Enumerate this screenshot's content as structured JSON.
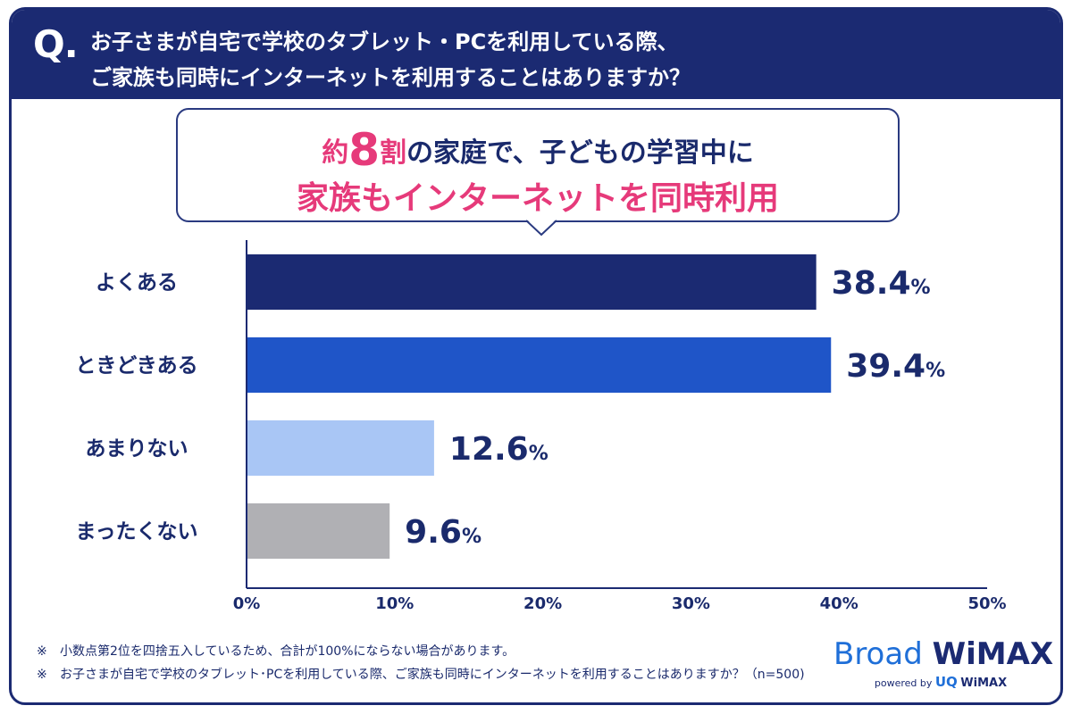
{
  "question": {
    "mark": "Q.",
    "line1": "お子さまが自宅で学校のタブレット・PCを利用している際、",
    "line2": "ご家族も同時にインターネットを利用することはありますか？"
  },
  "callout": {
    "prefix": "約",
    "number": "8",
    "suffix": "割",
    "rest": "の家庭で、子どもの学習中に",
    "line2": "家族もインターネットを同時利用"
  },
  "chart_data": {
    "type": "bar",
    "orientation": "horizontal",
    "categories": [
      "よくある",
      "ときどきある",
      "あまりない",
      "まったくない"
    ],
    "values": [
      38.4,
      39.4,
      12.6,
      9.6
    ],
    "value_unit": "%",
    "colors": [
      "#1b2a72",
      "#1f55c8",
      "#a9c6f5",
      "#b0b0b4"
    ],
    "xlim": [
      0,
      50
    ],
    "ticks": [
      "0%",
      "10%",
      "20%",
      "30%",
      "40%",
      "50%"
    ],
    "grid": false
  },
  "notes": [
    {
      "mark": "※",
      "text": "小数点第2位を四捨五入しているため、合計が100%にならない場合があります。"
    },
    {
      "mark": "※",
      "text": "お子さまが自宅で学校のタブレット･PCを利用している際、ご家族も同時にインターネットを利用することはありますか？（n=500)"
    }
  ],
  "brand": {
    "broad": "Broad",
    "wimax": "WiMAX",
    "powered_by": "powered by",
    "uq": "UQ",
    "uq_wimax": "WiMAX"
  }
}
